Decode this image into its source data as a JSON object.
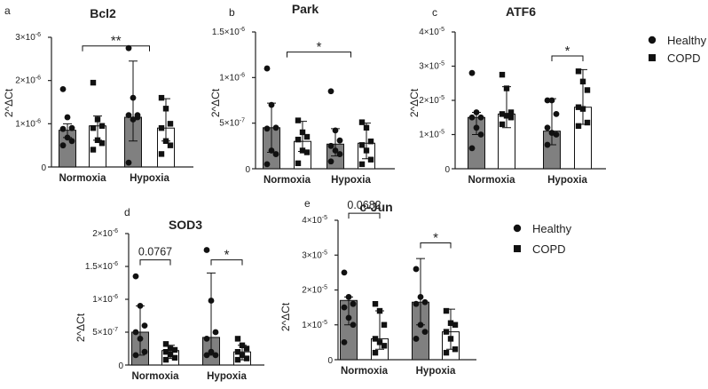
{
  "figure": {
    "legend_top": {
      "healthy": "Healthy",
      "copd": "COPD"
    },
    "legend_bottom": {
      "healthy": "Healthy",
      "copd": "COPD"
    }
  },
  "chart_data": [
    {
      "type": "bar",
      "panel": "a",
      "title": "Bcl2",
      "ylabel": "2^ΔCt",
      "categories": [
        "Normoxia",
        "Hypoxia"
      ],
      "ylim": [
        0,
        3e-06
      ],
      "yticks": [
        0,
        1e-06,
        2e-06,
        3e-06
      ],
      "ytick_labels": [
        {
          "m": "0",
          "e": ""
        },
        {
          "m": "1×10",
          "e": "-6"
        },
        {
          "m": "2×10",
          "e": "-6"
        },
        {
          "m": "3×10",
          "e": "-6"
        }
      ],
      "series": [
        {
          "name": "Healthy",
          "values": [
            8.5e-07,
            1.15e-06
          ],
          "err_low": [
            6.8e-07,
            6e-07
          ],
          "err_high": [
            1e-06,
            2.45e-06
          ],
          "points": [
            [
              1.8e-06,
              1.15e-06,
              9e-07,
              8.8e-07,
              6.8e-07,
              6e-07,
              5e-07
            ],
            [
              2.75e-06,
              1.6e-06,
              1.15e-06,
              1.2e-06,
              1.1e-06,
              1.2e-06,
              1e-07
            ]
          ]
        },
        {
          "name": "COPD",
          "values": [
            9.5e-07,
            9e-07
          ],
          "err_low": [
            6.2e-07,
            6e-07
          ],
          "err_high": [
            1.18e-06,
            1.58e-06
          ],
          "points": [
            [
              1.95e-06,
              1.1e-06,
              9.5e-07,
              9e-07,
              6.2e-07,
              5.5e-07,
              4e-07
            ],
            [
              1.6e-06,
              1.35e-06,
              1e-06,
              9e-07,
              6e-07,
              5e-07,
              3e-07
            ]
          ]
        }
      ],
      "annotations": [
        {
          "text": "**",
          "from": 0,
          "to": 1,
          "y": 2.8e-06
        }
      ]
    },
    {
      "type": "bar",
      "panel": "b",
      "title": "Park",
      "ylabel": "2^ΔCt",
      "categories": [
        "Normoxia",
        "Hypoxia"
      ],
      "ylim": [
        0,
        1.5e-06
      ],
      "yticks": [
        0,
        5e-07,
        1e-06,
        1.5e-06
      ],
      "ytick_labels": [
        {
          "m": "0",
          "e": ""
        },
        {
          "m": "5×10",
          "e": "-7"
        },
        {
          "m": "1×10",
          "e": "-6"
        },
        {
          "m": "1.5×10",
          "e": "-6"
        }
      ],
      "series": [
        {
          "name": "Healthy",
          "values": [
            4.5e-07,
            2.7e-07
          ],
          "err_low": [
            1.8e-07,
            1.4e-07
          ],
          "err_high": [
            7.2e-07,
            4.4e-07
          ],
          "points": [
            [
              1.1e-06,
              7e-07,
              4.5e-07,
              4.4e-07,
              2e-07,
              1.6e-07,
              5e-08
            ],
            [
              8.5e-07,
              4.2e-07,
              3.1e-07,
              2.5e-07,
              2e-07,
              1.6e-07,
              8e-08
            ]
          ]
        },
        {
          "name": "COPD",
          "values": [
            3e-07,
            2.8e-07
          ],
          "err_low": [
            1.9e-07,
            1.1e-07
          ],
          "err_high": [
            5.2e-07,
            5e-07
          ],
          "points": [
            [
              5.3e-07,
              4e-07,
              3.5e-07,
              3.2e-07,
              2e-07,
              1.8e-07,
              6e-08
            ],
            [
              5.1e-07,
              4.5e-07,
              3e-07,
              2.6e-07,
              2e-07,
              1e-07,
              5e-08
            ]
          ]
        }
      ],
      "annotations": [
        {
          "text": "*",
          "from": 0,
          "to": 1,
          "y": 1.28e-06
        }
      ]
    },
    {
      "type": "bar",
      "panel": "c",
      "title": "ATF6",
      "ylabel": "2^ΔCt",
      "categories": [
        "Normoxia",
        "Hypoxia"
      ],
      "ylim": [
        0,
        4e-05
      ],
      "yticks": [
        0,
        1e-05,
        2e-05,
        3e-05,
        4e-05
      ],
      "ytick_labels": [
        {
          "m": "0",
          "e": ""
        },
        {
          "m": "1×10",
          "e": "-5"
        },
        {
          "m": "2×10",
          "e": "-5"
        },
        {
          "m": "3×10",
          "e": "-5"
        },
        {
          "m": "4×10",
          "e": "-5"
        }
      ],
      "series": [
        {
          "name": "Healthy",
          "values": [
            1.5e-05,
            1.1e-05
          ],
          "err_low": [
            1e-05,
            7e-06
          ],
          "err_high": [
            1.65e-05,
            2.05e-05
          ],
          "points": [
            [
              2.8e-05,
              1.65e-05,
              1.5e-05,
              1.5e-05,
              1.2e-05,
              1e-05,
              6e-06
            ],
            [
              2e-05,
              2e-05,
              1.6e-05,
              1.2e-05,
              1.05e-05,
              1e-05,
              7e-06
            ]
          ]
        },
        {
          "name": "COPD",
          "values": [
            1.6e-05,
            1.8e-05
          ],
          "err_low": [
            1.2e-05,
            1.3e-05
          ],
          "err_high": [
            2.4e-05,
            2.9e-05
          ],
          "points": [
            [
              2.75e-05,
              2.35e-05,
              1.65e-05,
              1.6e-05,
              1.55e-05,
              1.5e-05,
              1.3e-05
            ],
            [
              2.85e-05,
              2.55e-05,
              2.3e-05,
              1.8e-05,
              1.75e-05,
              1.35e-05,
              1.25e-05
            ]
          ]
        }
      ],
      "annotations": [
        {
          "text": "*",
          "from": 1,
          "to": 1,
          "y": 3.3e-05
        }
      ]
    },
    {
      "type": "bar",
      "panel": "d",
      "title": "SOD3",
      "ylabel": "2^ΔCt",
      "categories": [
        "Normoxia",
        "Hypoxia"
      ],
      "ylim": [
        0,
        2e-06
      ],
      "yticks": [
        0,
        5e-07,
        1e-06,
        1.5e-06,
        2e-06
      ],
      "ytick_labels": [
        {
          "m": "0",
          "e": ""
        },
        {
          "m": "5×10",
          "e": "-7"
        },
        {
          "m": "1×10",
          "e": "-6"
        },
        {
          "m": "1.5×10",
          "e": "-6"
        },
        {
          "m": "2×10",
          "e": "-6"
        }
      ],
      "series": [
        {
          "name": "Healthy",
          "values": [
            5e-07,
            4.2e-07
          ],
          "err_low": [
            1.5e-07,
            1.5e-07
          ],
          "err_high": [
            9e-07,
            1.4e-06
          ],
          "points": [
            [
              1.35e-06,
              9e-07,
              6e-07,
              5e-07,
              4e-07,
              2e-07,
              1.5e-07
            ],
            [
              1.75e-06,
              9.8e-07,
              5e-07,
              4e-07,
              2e-07,
              1.5e-07,
              1.5e-07
            ]
          ]
        },
        {
          "name": "COPD",
          "values": [
            2.2e-07,
            2e-07
          ],
          "err_low": [
            1e-07,
            8e-08
          ],
          "err_high": [
            3e-07,
            3e-07
          ],
          "points": [
            [
              3.2e-07,
              2.5e-07,
              2.3e-07,
              2e-07,
              1.6e-07,
              1.1e-07,
              8e-08
            ],
            [
              4e-07,
              3e-07,
              2.5e-07,
              2e-07,
              1.5e-07,
              1e-07,
              8e-08
            ]
          ]
        }
      ],
      "annotations": [
        {
          "text": "0.0767",
          "from": 0,
          "to": 0,
          "y": 1.6e-06
        },
        {
          "text": "*",
          "from": 1,
          "to": 1,
          "y": 1.6e-06
        }
      ]
    },
    {
      "type": "bar",
      "panel": "e",
      "title": "c-Jun",
      "ylabel": "2^ΔCt",
      "categories": [
        "Normoxia",
        "Hypoxia"
      ],
      "ylim": [
        0,
        4e-05
      ],
      "yticks": [
        0,
        1e-05,
        2e-05,
        3e-05,
        4e-05
      ],
      "ytick_labels": [
        {
          "m": "0",
          "e": ""
        },
        {
          "m": "1×10",
          "e": "-5"
        },
        {
          "m": "2×10",
          "e": "-5"
        },
        {
          "m": "3×10",
          "e": "-5"
        },
        {
          "m": "4×10",
          "e": "-5"
        }
      ],
      "series": [
        {
          "name": "Healthy",
          "values": [
            1.7e-05,
            1.65e-05
          ],
          "err_low": [
            1e-05,
            1e-05
          ],
          "err_high": [
            1.8e-05,
            2.9e-05
          ],
          "points": [
            [
              2.5e-05,
              1.8e-05,
              1.6e-05,
              1.5e-05,
              1.2e-05,
              1e-05,
              5e-06
            ],
            [
              2.6e-05,
              1.8e-05,
              1.65e-05,
              1.6e-05,
              1e-05,
              8e-06,
              6e-06
            ]
          ]
        },
        {
          "name": "COPD",
          "values": [
            6e-06,
            8e-06
          ],
          "err_low": [
            3e-06,
            3e-06
          ],
          "err_high": [
            1.4e-05,
            1.45e-05
          ],
          "points": [
            [
              1.6e-05,
              1.4e-05,
              1e-05,
              6e-06,
              5e-06,
              4e-06,
              2e-06
            ],
            [
              1.4e-05,
              1.05e-05,
              1e-05,
              8e-06,
              6e-06,
              3e-06,
              2e-06
            ]
          ]
        }
      ],
      "annotations": [
        {
          "text": "0.0682",
          "from": 0,
          "to": 0,
          "y": 4.2e-05
        },
        {
          "text": "*",
          "from": 1,
          "to": 1,
          "y": 3.35e-05
        }
      ]
    }
  ]
}
